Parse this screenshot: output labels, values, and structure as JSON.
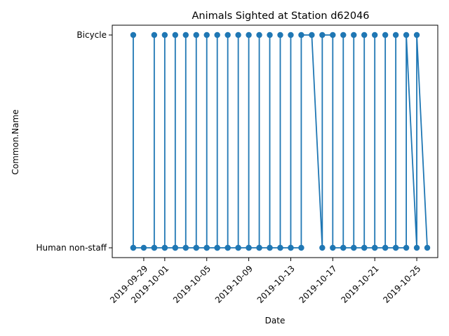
{
  "chart_data": {
    "type": "line",
    "title": "Animals Sighted at Station d62046",
    "xlabel": "Date",
    "ylabel": "Common.Name",
    "categories": [
      "Human non-staff",
      "Bicycle"
    ],
    "xlim": [
      "2019-09-26",
      "2019-10-27"
    ],
    "x_ticks": [
      "2019-09-29",
      "2019-10-01",
      "2019-10-05",
      "2019-10-09",
      "2019-10-13",
      "2019-10-17",
      "2019-10-21",
      "2019-10-25"
    ],
    "grid": false,
    "legend": "none",
    "line_color": "#1f77b4",
    "series": [
      {
        "marker": "circle",
        "points": [
          [
            "2019-09-28",
            "Human non-staff"
          ],
          [
            "2019-09-28",
            "Bicycle"
          ],
          [
            "2019-09-28",
            "Human non-staff"
          ],
          [
            "2019-09-29",
            "Human non-staff"
          ],
          [
            "2019-09-30",
            "Human non-staff"
          ],
          [
            "2019-09-30",
            "Bicycle"
          ],
          [
            "2019-09-30",
            "Human non-staff"
          ],
          [
            "2019-10-01",
            "Human non-staff"
          ],
          [
            "2019-10-01",
            "Bicycle"
          ],
          [
            "2019-10-01",
            "Human non-staff"
          ],
          [
            "2019-10-02",
            "Human non-staff"
          ],
          [
            "2019-10-02",
            "Bicycle"
          ],
          [
            "2019-10-02",
            "Human non-staff"
          ],
          [
            "2019-10-03",
            "Human non-staff"
          ],
          [
            "2019-10-03",
            "Bicycle"
          ],
          [
            "2019-10-03",
            "Human non-staff"
          ],
          [
            "2019-10-04",
            "Human non-staff"
          ],
          [
            "2019-10-04",
            "Bicycle"
          ],
          [
            "2019-10-04",
            "Human non-staff"
          ],
          [
            "2019-10-05",
            "Human non-staff"
          ],
          [
            "2019-10-05",
            "Bicycle"
          ],
          [
            "2019-10-05",
            "Human non-staff"
          ],
          [
            "2019-10-06",
            "Human non-staff"
          ],
          [
            "2019-10-06",
            "Bicycle"
          ],
          [
            "2019-10-06",
            "Human non-staff"
          ],
          [
            "2019-10-07",
            "Human non-staff"
          ],
          [
            "2019-10-07",
            "Bicycle"
          ],
          [
            "2019-10-07",
            "Human non-staff"
          ],
          [
            "2019-10-08",
            "Human non-staff"
          ],
          [
            "2019-10-08",
            "Bicycle"
          ],
          [
            "2019-10-08",
            "Human non-staff"
          ],
          [
            "2019-10-09",
            "Human non-staff"
          ],
          [
            "2019-10-09",
            "Bicycle"
          ],
          [
            "2019-10-09",
            "Human non-staff"
          ],
          [
            "2019-10-10",
            "Human non-staff"
          ],
          [
            "2019-10-10",
            "Bicycle"
          ],
          [
            "2019-10-10",
            "Human non-staff"
          ],
          [
            "2019-10-11",
            "Human non-staff"
          ],
          [
            "2019-10-11",
            "Bicycle"
          ],
          [
            "2019-10-11",
            "Human non-staff"
          ],
          [
            "2019-10-12",
            "Human non-staff"
          ],
          [
            "2019-10-12",
            "Bicycle"
          ],
          [
            "2019-10-12",
            "Human non-staff"
          ],
          [
            "2019-10-13",
            "Human non-staff"
          ],
          [
            "2019-10-13",
            "Bicycle"
          ],
          [
            "2019-10-13",
            "Human non-staff"
          ],
          [
            "2019-10-14",
            "Human non-staff"
          ],
          [
            "2019-10-14",
            "Bicycle"
          ],
          [
            "2019-10-15",
            "Bicycle"
          ],
          [
            "2019-10-16",
            "Human non-staff"
          ],
          [
            "2019-10-16",
            "Bicycle"
          ],
          [
            "2019-10-17",
            "Bicycle"
          ],
          [
            "2019-10-17",
            "Human non-staff"
          ],
          [
            "2019-10-18",
            "Human non-staff"
          ],
          [
            "2019-10-18",
            "Bicycle"
          ],
          [
            "2019-10-18",
            "Human non-staff"
          ],
          [
            "2019-10-19",
            "Human non-staff"
          ],
          [
            "2019-10-19",
            "Bicycle"
          ],
          [
            "2019-10-19",
            "Human non-staff"
          ],
          [
            "2019-10-20",
            "Human non-staff"
          ],
          [
            "2019-10-20",
            "Bicycle"
          ],
          [
            "2019-10-20",
            "Human non-staff"
          ],
          [
            "2019-10-21",
            "Human non-staff"
          ],
          [
            "2019-10-21",
            "Bicycle"
          ],
          [
            "2019-10-21",
            "Human non-staff"
          ],
          [
            "2019-10-22",
            "Human non-staff"
          ],
          [
            "2019-10-22",
            "Bicycle"
          ],
          [
            "2019-10-22",
            "Human non-staff"
          ],
          [
            "2019-10-23",
            "Human non-staff"
          ],
          [
            "2019-10-23",
            "Bicycle"
          ],
          [
            "2019-10-23",
            "Human non-staff"
          ],
          [
            "2019-10-24",
            "Human non-staff"
          ],
          [
            "2019-10-24",
            "Bicycle"
          ],
          [
            "2019-10-25",
            "Human non-staff"
          ],
          [
            "2019-10-25",
            "Bicycle"
          ],
          [
            "2019-10-26",
            "Human non-staff"
          ]
        ]
      }
    ]
  }
}
